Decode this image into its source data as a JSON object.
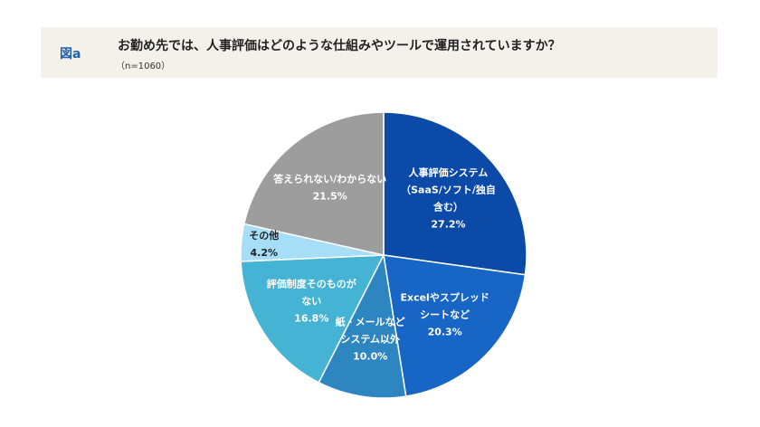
{
  "figure_label": "図a",
  "chart_data": {
    "type": "pie",
    "title": "お勤め先では、人事評価はどのような仕組みやツールで運用されていますか？",
    "subtitle": "（n=1060）",
    "categories": [
      [
        "人事評価システム",
        "（SaaS/ソフト/独自",
        "含む）"
      ],
      [
        "Excelやスプレッド",
        "シートなど"
      ],
      [
        "紙・メールなど",
        "システム以外"
      ],
      [
        "評価制度そのものが",
        "ない"
      ],
      [
        "その他"
      ],
      [
        "答えられない/わからない"
      ]
    ],
    "values": [
      27.2,
      20.3,
      10.0,
      16.8,
      4.2,
      21.5
    ],
    "value_labels": [
      "27.2%",
      "20.3%",
      "10.0%",
      "16.8%",
      "4.2%",
      "21.5%"
    ],
    "colors": [
      "#0b4aa6",
      "#1766c6",
      "#2e86c1",
      "#44b3d4",
      "#a6def7",
      "#9d9d9d"
    ]
  }
}
